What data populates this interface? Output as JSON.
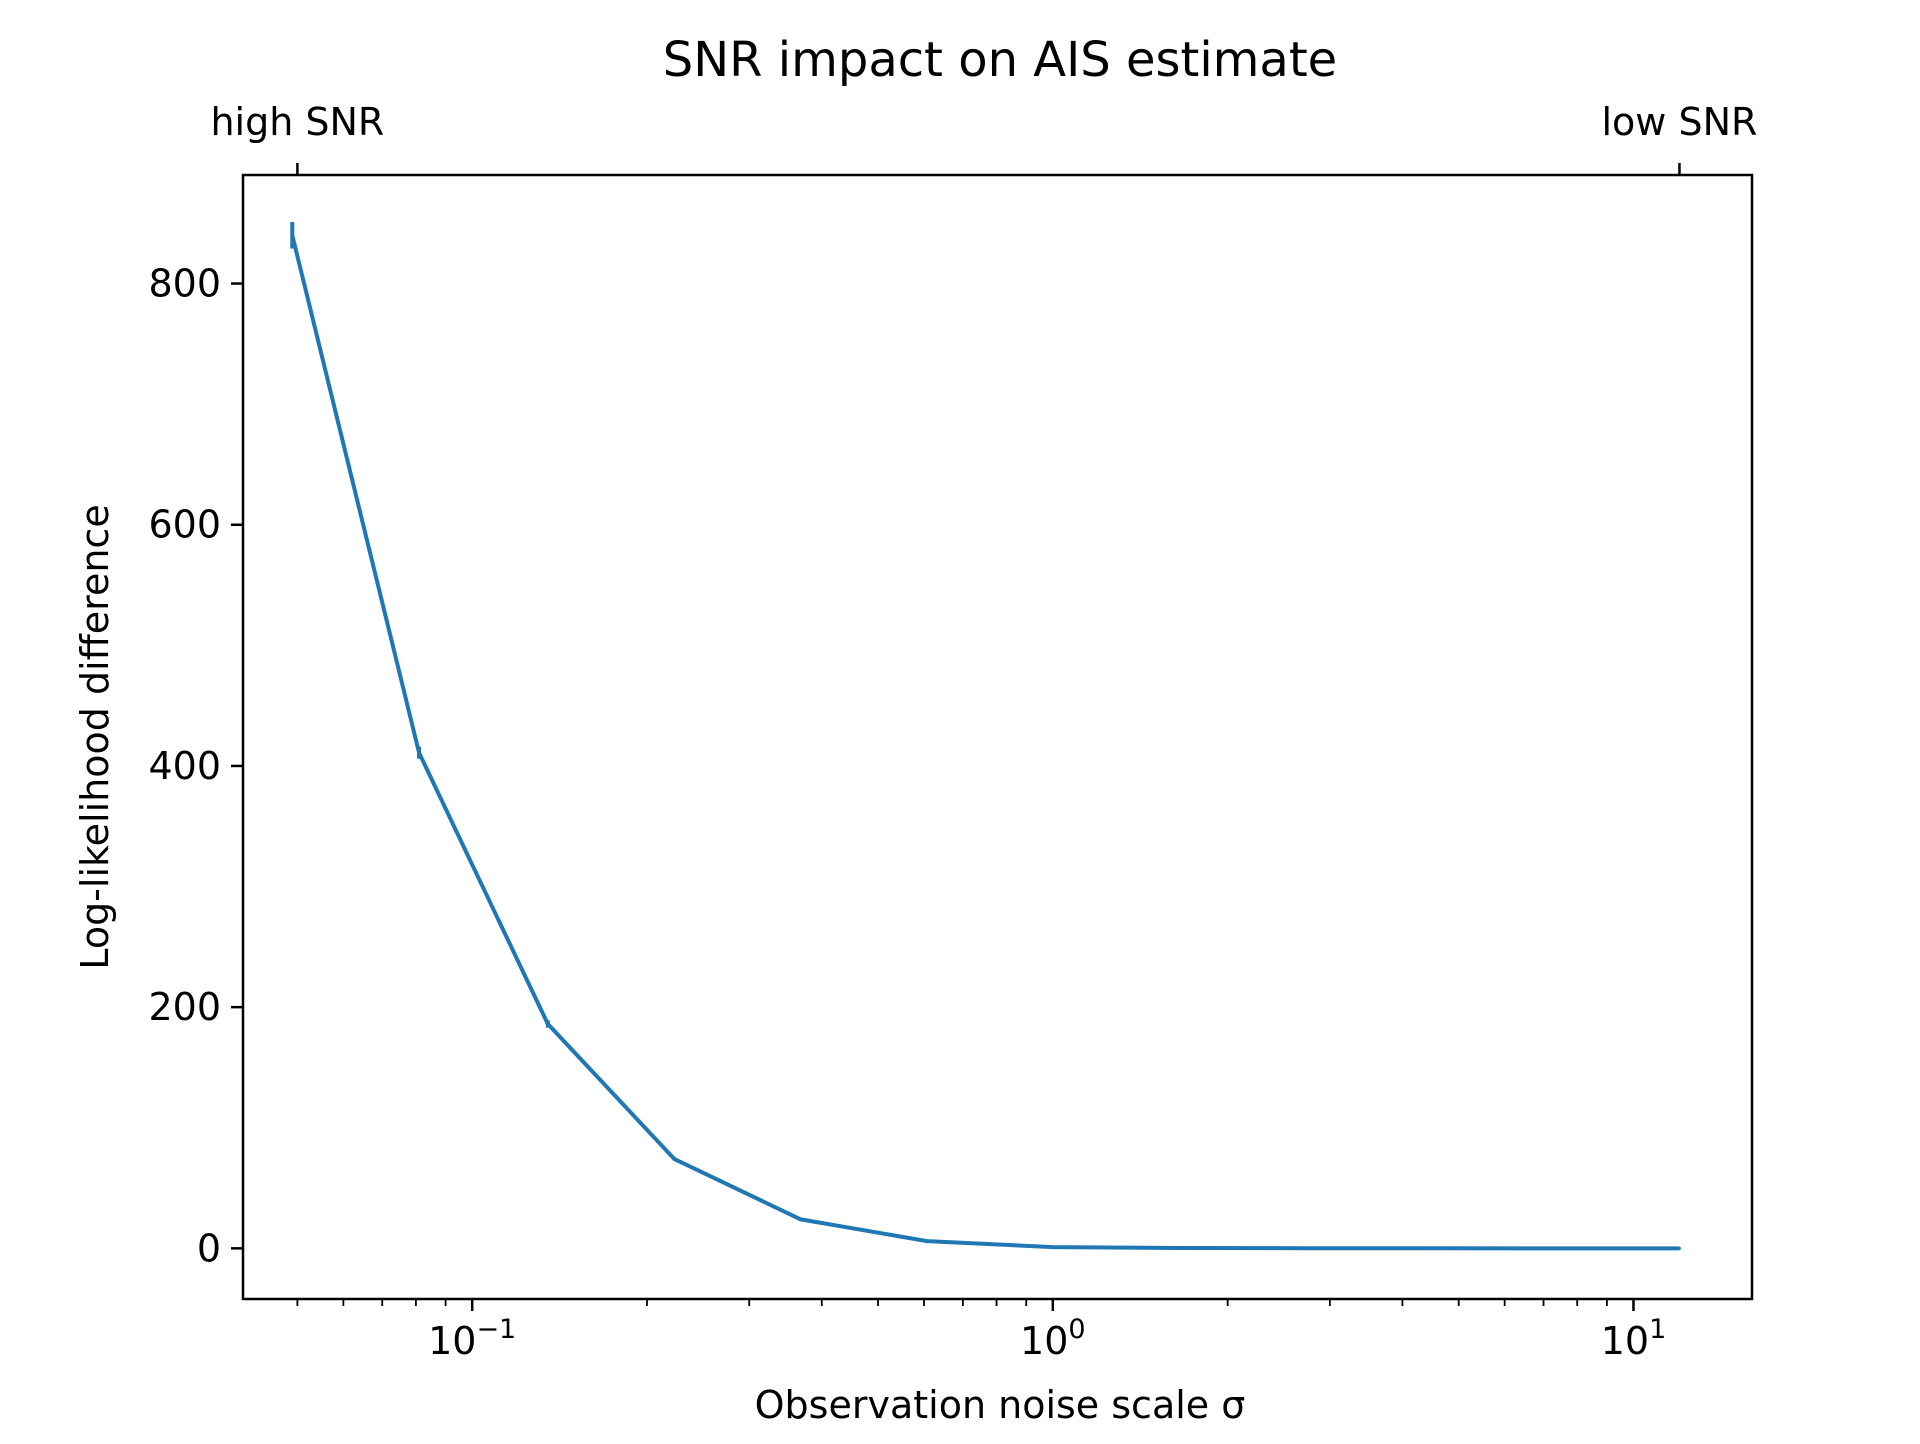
{
  "chart_data": {
    "type": "line",
    "title": "SNR impact on AIS estimate",
    "xlabel": "Observation noise scale σ",
    "ylabel": "Log-likelihood difference",
    "x_scale": "log",
    "xlim": [
      0.0403,
      16.0
    ],
    "ylim": [
      -42,
      890
    ],
    "x_ticks": [
      {
        "value": 0.1,
        "base": "10",
        "exp": "−1"
      },
      {
        "value": 1,
        "base": "10",
        "exp": "0"
      },
      {
        "value": 10,
        "base": "10",
        "exp": "1"
      }
    ],
    "y_ticks": [
      0,
      200,
      400,
      600,
      800
    ],
    "top_axis_ticks": [
      {
        "value": 0.05,
        "label": "high SNR"
      },
      {
        "value": 12.0,
        "label": "low SNR"
      }
    ],
    "grid": false,
    "color": "#1f77b4",
    "series": [
      {
        "x": [
          0.049,
          0.081,
          0.135,
          0.223,
          0.368,
          0.607,
          1.0,
          1.65,
          2.72,
          4.48,
          7.39,
          12.0
        ],
        "y": [
          840,
          411,
          186,
          74,
          24,
          6,
          1,
          0.3,
          0.1,
          0.05,
          0.02,
          0.0
        ],
        "yerr": [
          11,
          5,
          3,
          1,
          0.5,
          0.2,
          0.1,
          0,
          0,
          0,
          0,
          0
        ]
      }
    ]
  }
}
